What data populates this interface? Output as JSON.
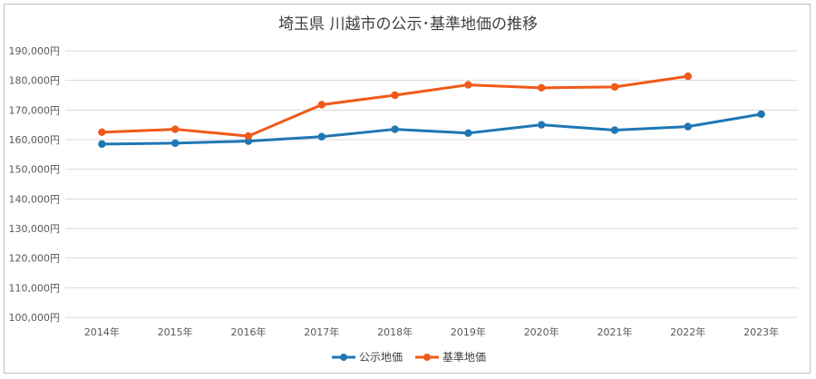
{
  "chart_data": {
    "type": "line",
    "title": "埼玉県 川越市の公示･基準地価の推移",
    "categories": [
      "2014年",
      "2015年",
      "2016年",
      "2017年",
      "2018年",
      "2019年",
      "2020年",
      "2021年",
      "2022年",
      "2023年"
    ],
    "ylim": [
      100000,
      190000
    ],
    "yticks": [
      "100,000円",
      "110,000円",
      "120,000円",
      "130,000円",
      "140,000円",
      "150,000円",
      "160,000円",
      "170,000円",
      "180,000円",
      "190,000円"
    ],
    "grid": true,
    "legend": "bottom",
    "series": [
      {
        "name": "公示地価",
        "color": "#1f77b4",
        "values": [
          158500,
          158800,
          159500,
          161000,
          163500,
          162200,
          165000,
          163200,
          164400,
          168600
        ]
      },
      {
        "name": "基準地価",
        "color": "#f05a1a",
        "values": [
          162500,
          163500,
          161200,
          171800,
          175000,
          178500,
          177500,
          177800,
          181400,
          null
        ]
      }
    ]
  }
}
